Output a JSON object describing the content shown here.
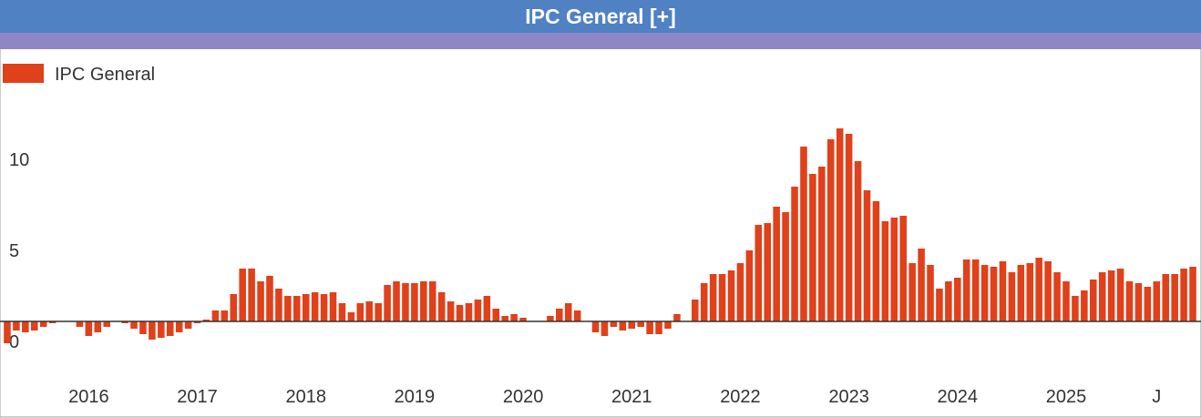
{
  "chart_data": {
    "type": "bar",
    "title": "IPC General [+]",
    "categories": [
      null,
      null,
      null,
      null,
      null,
      null,
      null,
      null,
      null,
      "2016",
      null,
      null,
      null,
      null,
      null,
      null,
      null,
      null,
      null,
      null,
      null,
      "2017",
      null,
      null,
      null,
      null,
      null,
      null,
      null,
      null,
      null,
      null,
      null,
      "2018",
      null,
      null,
      null,
      null,
      null,
      null,
      null,
      null,
      null,
      null,
      null,
      "2019",
      null,
      null,
      null,
      null,
      null,
      null,
      null,
      null,
      null,
      null,
      null,
      "2020",
      null,
      null,
      null,
      null,
      null,
      null,
      null,
      null,
      null,
      null,
      null,
      "2021",
      null,
      null,
      null,
      null,
      null,
      null,
      null,
      null,
      null,
      null,
      null,
      "2022",
      null,
      null,
      null,
      null,
      null,
      null,
      null,
      null,
      null,
      null,
      null,
      "2023",
      null,
      null,
      null,
      null,
      null,
      null,
      null,
      null,
      null,
      null,
      null,
      "2024",
      null,
      null,
      null,
      null,
      null,
      null,
      null,
      null,
      null,
      null,
      null,
      "2025",
      null,
      null,
      null,
      null,
      null,
      null,
      null,
      null,
      null,
      "J",
      null,
      null,
      null,
      null
    ],
    "series": [
      {
        "name": "IPC General",
        "color": "#e0401a",
        "values": [
          -1.2,
          -0.5,
          -0.6,
          -0.5,
          -0.3,
          -0.1,
          0,
          0,
          -0.3,
          -0.8,
          -0.6,
          -0.3,
          0,
          -0.1,
          -0.4,
          -0.7,
          -1.0,
          -0.9,
          -0.8,
          -0.6,
          -0.4,
          -0.1,
          0.1,
          0.6,
          0.6,
          1.5,
          2.9,
          2.9,
          2.2,
          2.5,
          1.8,
          1.4,
          1.4,
          1.5,
          1.6,
          1.5,
          1.6,
          1.0,
          0.5,
          1.0,
          1.1,
          1.0,
          2.0,
          2.2,
          2.1,
          2.1,
          2.2,
          2.2,
          1.6,
          1.1,
          0.9,
          1.0,
          1.2,
          1.4,
          0.7,
          0.3,
          0.4,
          0.2,
          0,
          0,
          0.3,
          0.7,
          1.0,
          0.6,
          0,
          -0.6,
          -0.8,
          -0.3,
          -0.5,
          -0.4,
          -0.3,
          -0.7,
          -0.7,
          -0.4,
          0.4,
          0,
          1.2,
          2.1,
          2.6,
          2.6,
          2.8,
          3.2,
          3.9,
          5.3,
          5.4,
          6.3,
          6.0,
          7.4,
          9.6,
          8.1,
          8.5,
          10.0,
          10.6,
          10.3,
          8.8,
          7.2,
          6.6,
          5.5,
          5.7,
          5.8,
          3.2,
          4.0,
          3.1,
          1.8,
          2.2,
          2.4,
          3.4,
          3.4,
          3.1,
          3.0,
          3.3,
          2.7,
          3.1,
          3.2,
          3.5,
          3.3,
          2.7,
          2.2,
          1.4,
          1.7,
          2.3,
          2.7,
          2.8,
          2.9,
          2.2,
          2.1,
          1.9,
          2.2,
          2.6,
          2.6,
          2.9,
          3.0
        ]
      }
    ],
    "ylim": [
      -5,
      13
    ],
    "yticks": [
      0,
      5,
      10
    ],
    "grid": false,
    "legend": "top-left"
  }
}
